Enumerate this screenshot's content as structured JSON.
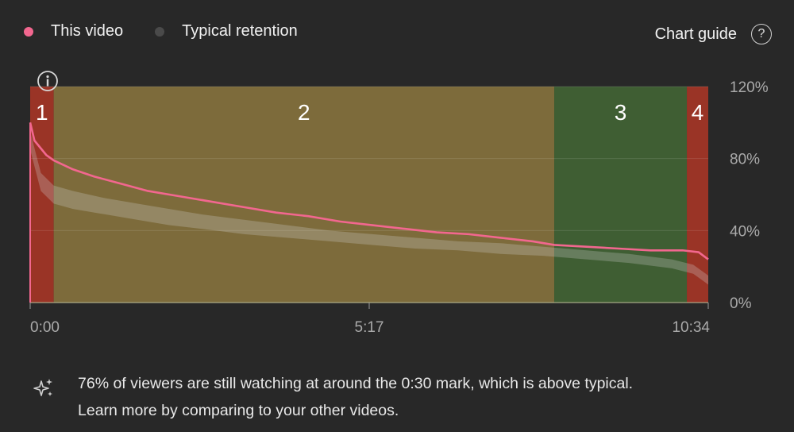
{
  "legend": {
    "this_video": "This video",
    "typical": "Typical retention",
    "this_video_color": "#f2678f",
    "typical_color": "#4a4a4a"
  },
  "chart_guide": {
    "label": "Chart guide",
    "icon": "help-circle-icon"
  },
  "info_icon": "info-circle-icon",
  "insight": {
    "icon": "sparkle-icon",
    "line1": "76% of viewers are still watching at around the 0:30 mark, which is above typical.",
    "line2": "Learn more by comparing to your other videos."
  },
  "chart_data": {
    "type": "line",
    "x_unit": "seconds",
    "xlim": [
      0,
      634
    ],
    "ylim": [
      0,
      120
    ],
    "x_ticks": [
      {
        "value": 0,
        "label": "0:00"
      },
      {
        "value": 317,
        "label": "5:17"
      },
      {
        "value": 634,
        "label": "10:34"
      }
    ],
    "y_ticks": [
      {
        "value": 0,
        "label": "0%"
      },
      {
        "value": 40,
        "label": "40%"
      },
      {
        "value": 80,
        "label": "80%"
      },
      {
        "value": 120,
        "label": "120%"
      }
    ],
    "segments": [
      {
        "label": "1",
        "start": 0,
        "end": 22,
        "color": "#9a3426"
      },
      {
        "label": "2",
        "start": 22,
        "end": 490,
        "color": "#7d6b3b"
      },
      {
        "label": "3",
        "start": 490,
        "end": 614,
        "color": "#3f5e33"
      },
      {
        "label": "4",
        "start": 614,
        "end": 634,
        "color": "#9a3426"
      }
    ],
    "series": [
      {
        "name": "This video",
        "color": "#f2678f",
        "x": [
          0,
          4,
          15,
          22,
          40,
          60,
          85,
          110,
          140,
          170,
          200,
          230,
          260,
          290,
          320,
          350,
          380,
          410,
          440,
          470,
          490,
          520,
          550,
          580,
          610,
          625,
          634
        ],
        "y": [
          100,
          90,
          82,
          79,
          74,
          70,
          66,
          62,
          59,
          56,
          53,
          50,
          48,
          45,
          43,
          41,
          39,
          38,
          36,
          34,
          32,
          31,
          30,
          29,
          29,
          28,
          24
        ]
      },
      {
        "name": "Typical retention",
        "color": "#c8c8c8",
        "x": [
          0,
          10,
          22,
          40,
          70,
          100,
          130,
          160,
          200,
          240,
          280,
          320,
          360,
          400,
          440,
          480,
          520,
          560,
          600,
          620,
          634
        ],
        "y_low": [
          85,
          62,
          55,
          52,
          49,
          46,
          43,
          41,
          38,
          36,
          34,
          32,
          30,
          29,
          27,
          26,
          24,
          22,
          19,
          16,
          10
        ],
        "y_high": [
          95,
          72,
          65,
          62,
          58,
          55,
          52,
          49,
          46,
          43,
          40,
          38,
          36,
          34,
          33,
          31,
          29,
          27,
          24,
          21,
          15
        ]
      }
    ]
  }
}
